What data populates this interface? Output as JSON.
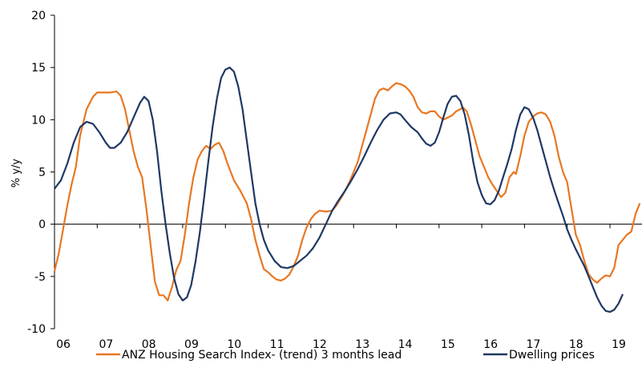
{
  "chart_data": {
    "type": "line",
    "title": "",
    "xlabel": "",
    "ylabel": "% y/y",
    "ylim": [
      -10,
      20
    ],
    "yticks": [
      -10,
      -5,
      0,
      5,
      10,
      15,
      20
    ],
    "xlim": [
      2006.0,
      2019.75
    ],
    "xtick_labels": [
      "06",
      "07",
      "08",
      "09",
      "10",
      "11",
      "12",
      "13",
      "14",
      "15",
      "16",
      "17",
      "18",
      "19"
    ],
    "grid": false,
    "legend_position": "bottom",
    "series": [
      {
        "name": "ANZ Housing Search Index- (trend) 3 months lead",
        "color": "#E87722",
        "points": [
          [
            2006.0,
            -4.5
          ],
          [
            2006.1,
            -2.8
          ],
          [
            2006.2,
            -0.5
          ],
          [
            2006.3,
            1.8
          ],
          [
            2006.4,
            3.8
          ],
          [
            2006.5,
            5.5
          ],
          [
            2006.6,
            8.5
          ],
          [
            2006.75,
            11.0
          ],
          [
            2006.9,
            12.2
          ],
          [
            2007.0,
            12.6
          ],
          [
            2007.15,
            12.6
          ],
          [
            2007.3,
            12.6
          ],
          [
            2007.45,
            12.7
          ],
          [
            2007.55,
            12.3
          ],
          [
            2007.65,
            11.0
          ],
          [
            2007.75,
            9.0
          ],
          [
            2007.85,
            7.0
          ],
          [
            2007.95,
            5.5
          ],
          [
            2008.05,
            4.5
          ],
          [
            2008.15,
            1.5
          ],
          [
            2008.25,
            -2.0
          ],
          [
            2008.35,
            -5.5
          ],
          [
            2008.45,
            -6.8
          ],
          [
            2008.55,
            -6.8
          ],
          [
            2008.65,
            -7.3
          ],
          [
            2008.75,
            -6.0
          ],
          [
            2008.85,
            -4.4
          ],
          [
            2008.95,
            -3.5
          ],
          [
            2009.05,
            -1.0
          ],
          [
            2009.15,
            2.0
          ],
          [
            2009.25,
            4.5
          ],
          [
            2009.35,
            6.2
          ],
          [
            2009.45,
            7.0
          ],
          [
            2009.55,
            7.5
          ],
          [
            2009.65,
            7.2
          ],
          [
            2009.75,
            7.6
          ],
          [
            2009.85,
            7.8
          ],
          [
            2009.95,
            7.0
          ],
          [
            2010.05,
            5.8
          ],
          [
            2010.2,
            4.2
          ],
          [
            2010.35,
            3.2
          ],
          [
            2010.5,
            2.0
          ],
          [
            2010.6,
            0.5
          ],
          [
            2010.7,
            -1.5
          ],
          [
            2010.8,
            -3.0
          ],
          [
            2010.9,
            -4.3
          ],
          [
            2011.0,
            -4.6
          ],
          [
            2011.1,
            -5.0
          ],
          [
            2011.2,
            -5.3
          ],
          [
            2011.3,
            -5.4
          ],
          [
            2011.4,
            -5.2
          ],
          [
            2011.5,
            -4.8
          ],
          [
            2011.6,
            -4.0
          ],
          [
            2011.7,
            -3.0
          ],
          [
            2011.8,
            -1.5
          ],
          [
            2011.9,
            -0.3
          ],
          [
            2012.0,
            0.5
          ],
          [
            2012.1,
            1.0
          ],
          [
            2012.2,
            1.3
          ],
          [
            2012.35,
            1.2
          ],
          [
            2012.5,
            1.3
          ],
          [
            2012.6,
            1.8
          ],
          [
            2012.75,
            2.8
          ],
          [
            2012.9,
            4.0
          ],
          [
            2013.0,
            5.0
          ],
          [
            2013.1,
            6.0
          ],
          [
            2013.2,
            7.5
          ],
          [
            2013.3,
            9.0
          ],
          [
            2013.4,
            10.5
          ],
          [
            2013.5,
            12.0
          ],
          [
            2013.6,
            12.8
          ],
          [
            2013.7,
            13.0
          ],
          [
            2013.8,
            12.8
          ],
          [
            2013.9,
            13.2
          ],
          [
            2014.0,
            13.5
          ],
          [
            2014.1,
            13.4
          ],
          [
            2014.2,
            13.2
          ],
          [
            2014.3,
            12.8
          ],
          [
            2014.4,
            12.2
          ],
          [
            2014.5,
            11.2
          ],
          [
            2014.6,
            10.7
          ],
          [
            2014.7,
            10.6
          ],
          [
            2014.8,
            10.8
          ],
          [
            2014.9,
            10.8
          ],
          [
            2015.0,
            10.3
          ],
          [
            2015.1,
            10.0
          ],
          [
            2015.2,
            10.2
          ],
          [
            2015.3,
            10.4
          ],
          [
            2015.4,
            10.8
          ],
          [
            2015.5,
            11.0
          ],
          [
            2015.55,
            11.2
          ],
          [
            2015.65,
            10.8
          ],
          [
            2015.75,
            9.5
          ],
          [
            2015.85,
            8.0
          ],
          [
            2015.95,
            6.5
          ],
          [
            2016.05,
            5.5
          ],
          [
            2016.15,
            4.5
          ],
          [
            2016.25,
            3.8
          ],
          [
            2016.35,
            3.2
          ],
          [
            2016.45,
            2.6
          ],
          [
            2016.55,
            3.0
          ],
          [
            2016.65,
            4.5
          ],
          [
            2016.75,
            5.0
          ],
          [
            2016.8,
            4.8
          ],
          [
            2016.9,
            6.5
          ],
          [
            2017.0,
            8.5
          ],
          [
            2017.1,
            9.8
          ],
          [
            2017.2,
            10.3
          ],
          [
            2017.3,
            10.6
          ],
          [
            2017.4,
            10.7
          ],
          [
            2017.5,
            10.5
          ],
          [
            2017.6,
            9.8
          ],
          [
            2017.7,
            8.5
          ],
          [
            2017.8,
            6.5
          ],
          [
            2017.9,
            5.0
          ],
          [
            2018.0,
            4.0
          ],
          [
            2018.1,
            1.5
          ],
          [
            2018.2,
            -1.0
          ],
          [
            2018.3,
            -2.0
          ],
          [
            2018.4,
            -3.5
          ],
          [
            2018.5,
            -4.8
          ],
          [
            2018.6,
            -5.3
          ],
          [
            2018.7,
            -5.6
          ],
          [
            2018.8,
            -5.2
          ],
          [
            2018.9,
            -4.9
          ],
          [
            2019.0,
            -5.0
          ],
          [
            2019.1,
            -4.2
          ],
          [
            2019.2,
            -2.0
          ],
          [
            2019.3,
            -1.5
          ],
          [
            2019.4,
            -1.0
          ],
          [
            2019.5,
            -0.7
          ],
          [
            2019.6,
            1.0
          ],
          [
            2019.7,
            2.0
          ]
        ]
      },
      {
        "name": "Dwelling prices",
        "color": "#1F3864",
        "points": [
          [
            2006.0,
            3.4
          ],
          [
            2006.15,
            4.2
          ],
          [
            2006.3,
            5.8
          ],
          [
            2006.45,
            7.8
          ],
          [
            2006.6,
            9.3
          ],
          [
            2006.75,
            9.8
          ],
          [
            2006.9,
            9.6
          ],
          [
            2007.05,
            8.8
          ],
          [
            2007.2,
            7.8
          ],
          [
            2007.3,
            7.3
          ],
          [
            2007.4,
            7.3
          ],
          [
            2007.55,
            7.8
          ],
          [
            2007.7,
            8.8
          ],
          [
            2007.85,
            10.2
          ],
          [
            2008.0,
            11.6
          ],
          [
            2008.1,
            12.2
          ],
          [
            2008.2,
            11.8
          ],
          [
            2008.3,
            10.0
          ],
          [
            2008.4,
            7.0
          ],
          [
            2008.5,
            3.2
          ],
          [
            2008.6,
            0.0
          ],
          [
            2008.7,
            -2.8
          ],
          [
            2008.8,
            -5.2
          ],
          [
            2008.9,
            -6.7
          ],
          [
            2009.0,
            -7.3
          ],
          [
            2009.1,
            -7.0
          ],
          [
            2009.2,
            -5.8
          ],
          [
            2009.3,
            -3.6
          ],
          [
            2009.4,
            -0.8
          ],
          [
            2009.5,
            2.5
          ],
          [
            2009.6,
            6.0
          ],
          [
            2009.7,
            9.3
          ],
          [
            2009.8,
            12.0
          ],
          [
            2009.9,
            14.0
          ],
          [
            2010.0,
            14.8
          ],
          [
            2010.1,
            15.0
          ],
          [
            2010.2,
            14.6
          ],
          [
            2010.3,
            13.2
          ],
          [
            2010.4,
            11.0
          ],
          [
            2010.5,
            8.0
          ],
          [
            2010.6,
            5.0
          ],
          [
            2010.7,
            2.0
          ],
          [
            2010.8,
            0.0
          ],
          [
            2010.9,
            -1.5
          ],
          [
            2011.0,
            -2.5
          ],
          [
            2011.15,
            -3.5
          ],
          [
            2011.3,
            -4.1
          ],
          [
            2011.45,
            -4.2
          ],
          [
            2011.6,
            -4.0
          ],
          [
            2011.75,
            -3.5
          ],
          [
            2011.9,
            -3.0
          ],
          [
            2012.05,
            -2.3
          ],
          [
            2012.2,
            -1.3
          ],
          [
            2012.35,
            0.0
          ],
          [
            2012.5,
            1.3
          ],
          [
            2012.65,
            2.3
          ],
          [
            2012.8,
            3.2
          ],
          [
            2012.95,
            4.2
          ],
          [
            2013.1,
            5.3
          ],
          [
            2013.25,
            6.5
          ],
          [
            2013.4,
            7.8
          ],
          [
            2013.55,
            9.0
          ],
          [
            2013.7,
            10.0
          ],
          [
            2013.85,
            10.6
          ],
          [
            2014.0,
            10.7
          ],
          [
            2014.1,
            10.5
          ],
          [
            2014.2,
            10.0
          ],
          [
            2014.35,
            9.3
          ],
          [
            2014.5,
            8.8
          ],
          [
            2014.6,
            8.2
          ],
          [
            2014.7,
            7.7
          ],
          [
            2014.8,
            7.5
          ],
          [
            2014.9,
            7.8
          ],
          [
            2015.0,
            8.8
          ],
          [
            2015.1,
            10.2
          ],
          [
            2015.2,
            11.5
          ],
          [
            2015.3,
            12.2
          ],
          [
            2015.4,
            12.3
          ],
          [
            2015.5,
            11.8
          ],
          [
            2015.6,
            10.5
          ],
          [
            2015.7,
            8.5
          ],
          [
            2015.8,
            6.0
          ],
          [
            2015.9,
            4.0
          ],
          [
            2016.0,
            2.8
          ],
          [
            2016.1,
            2.0
          ],
          [
            2016.2,
            1.9
          ],
          [
            2016.3,
            2.3
          ],
          [
            2016.4,
            3.2
          ],
          [
            2016.5,
            4.5
          ],
          [
            2016.6,
            5.8
          ],
          [
            2016.7,
            7.2
          ],
          [
            2016.8,
            9.0
          ],
          [
            2016.9,
            10.5
          ],
          [
            2017.0,
            11.2
          ],
          [
            2017.1,
            11.0
          ],
          [
            2017.2,
            10.2
          ],
          [
            2017.3,
            9.0
          ],
          [
            2017.4,
            7.5
          ],
          [
            2017.5,
            6.0
          ],
          [
            2017.6,
            4.5
          ],
          [
            2017.7,
            3.2
          ],
          [
            2017.8,
            2.0
          ],
          [
            2017.9,
            0.8
          ],
          [
            2018.0,
            -0.5
          ],
          [
            2018.1,
            -1.5
          ],
          [
            2018.2,
            -2.4
          ],
          [
            2018.3,
            -3.2
          ],
          [
            2018.4,
            -4.0
          ],
          [
            2018.5,
            -5.0
          ],
          [
            2018.6,
            -6.0
          ],
          [
            2018.7,
            -7.0
          ],
          [
            2018.8,
            -7.8
          ],
          [
            2018.9,
            -8.3
          ],
          [
            2019.0,
            -8.4
          ],
          [
            2019.1,
            -8.2
          ],
          [
            2019.2,
            -7.6
          ],
          [
            2019.3,
            -6.7
          ]
        ]
      }
    ]
  }
}
